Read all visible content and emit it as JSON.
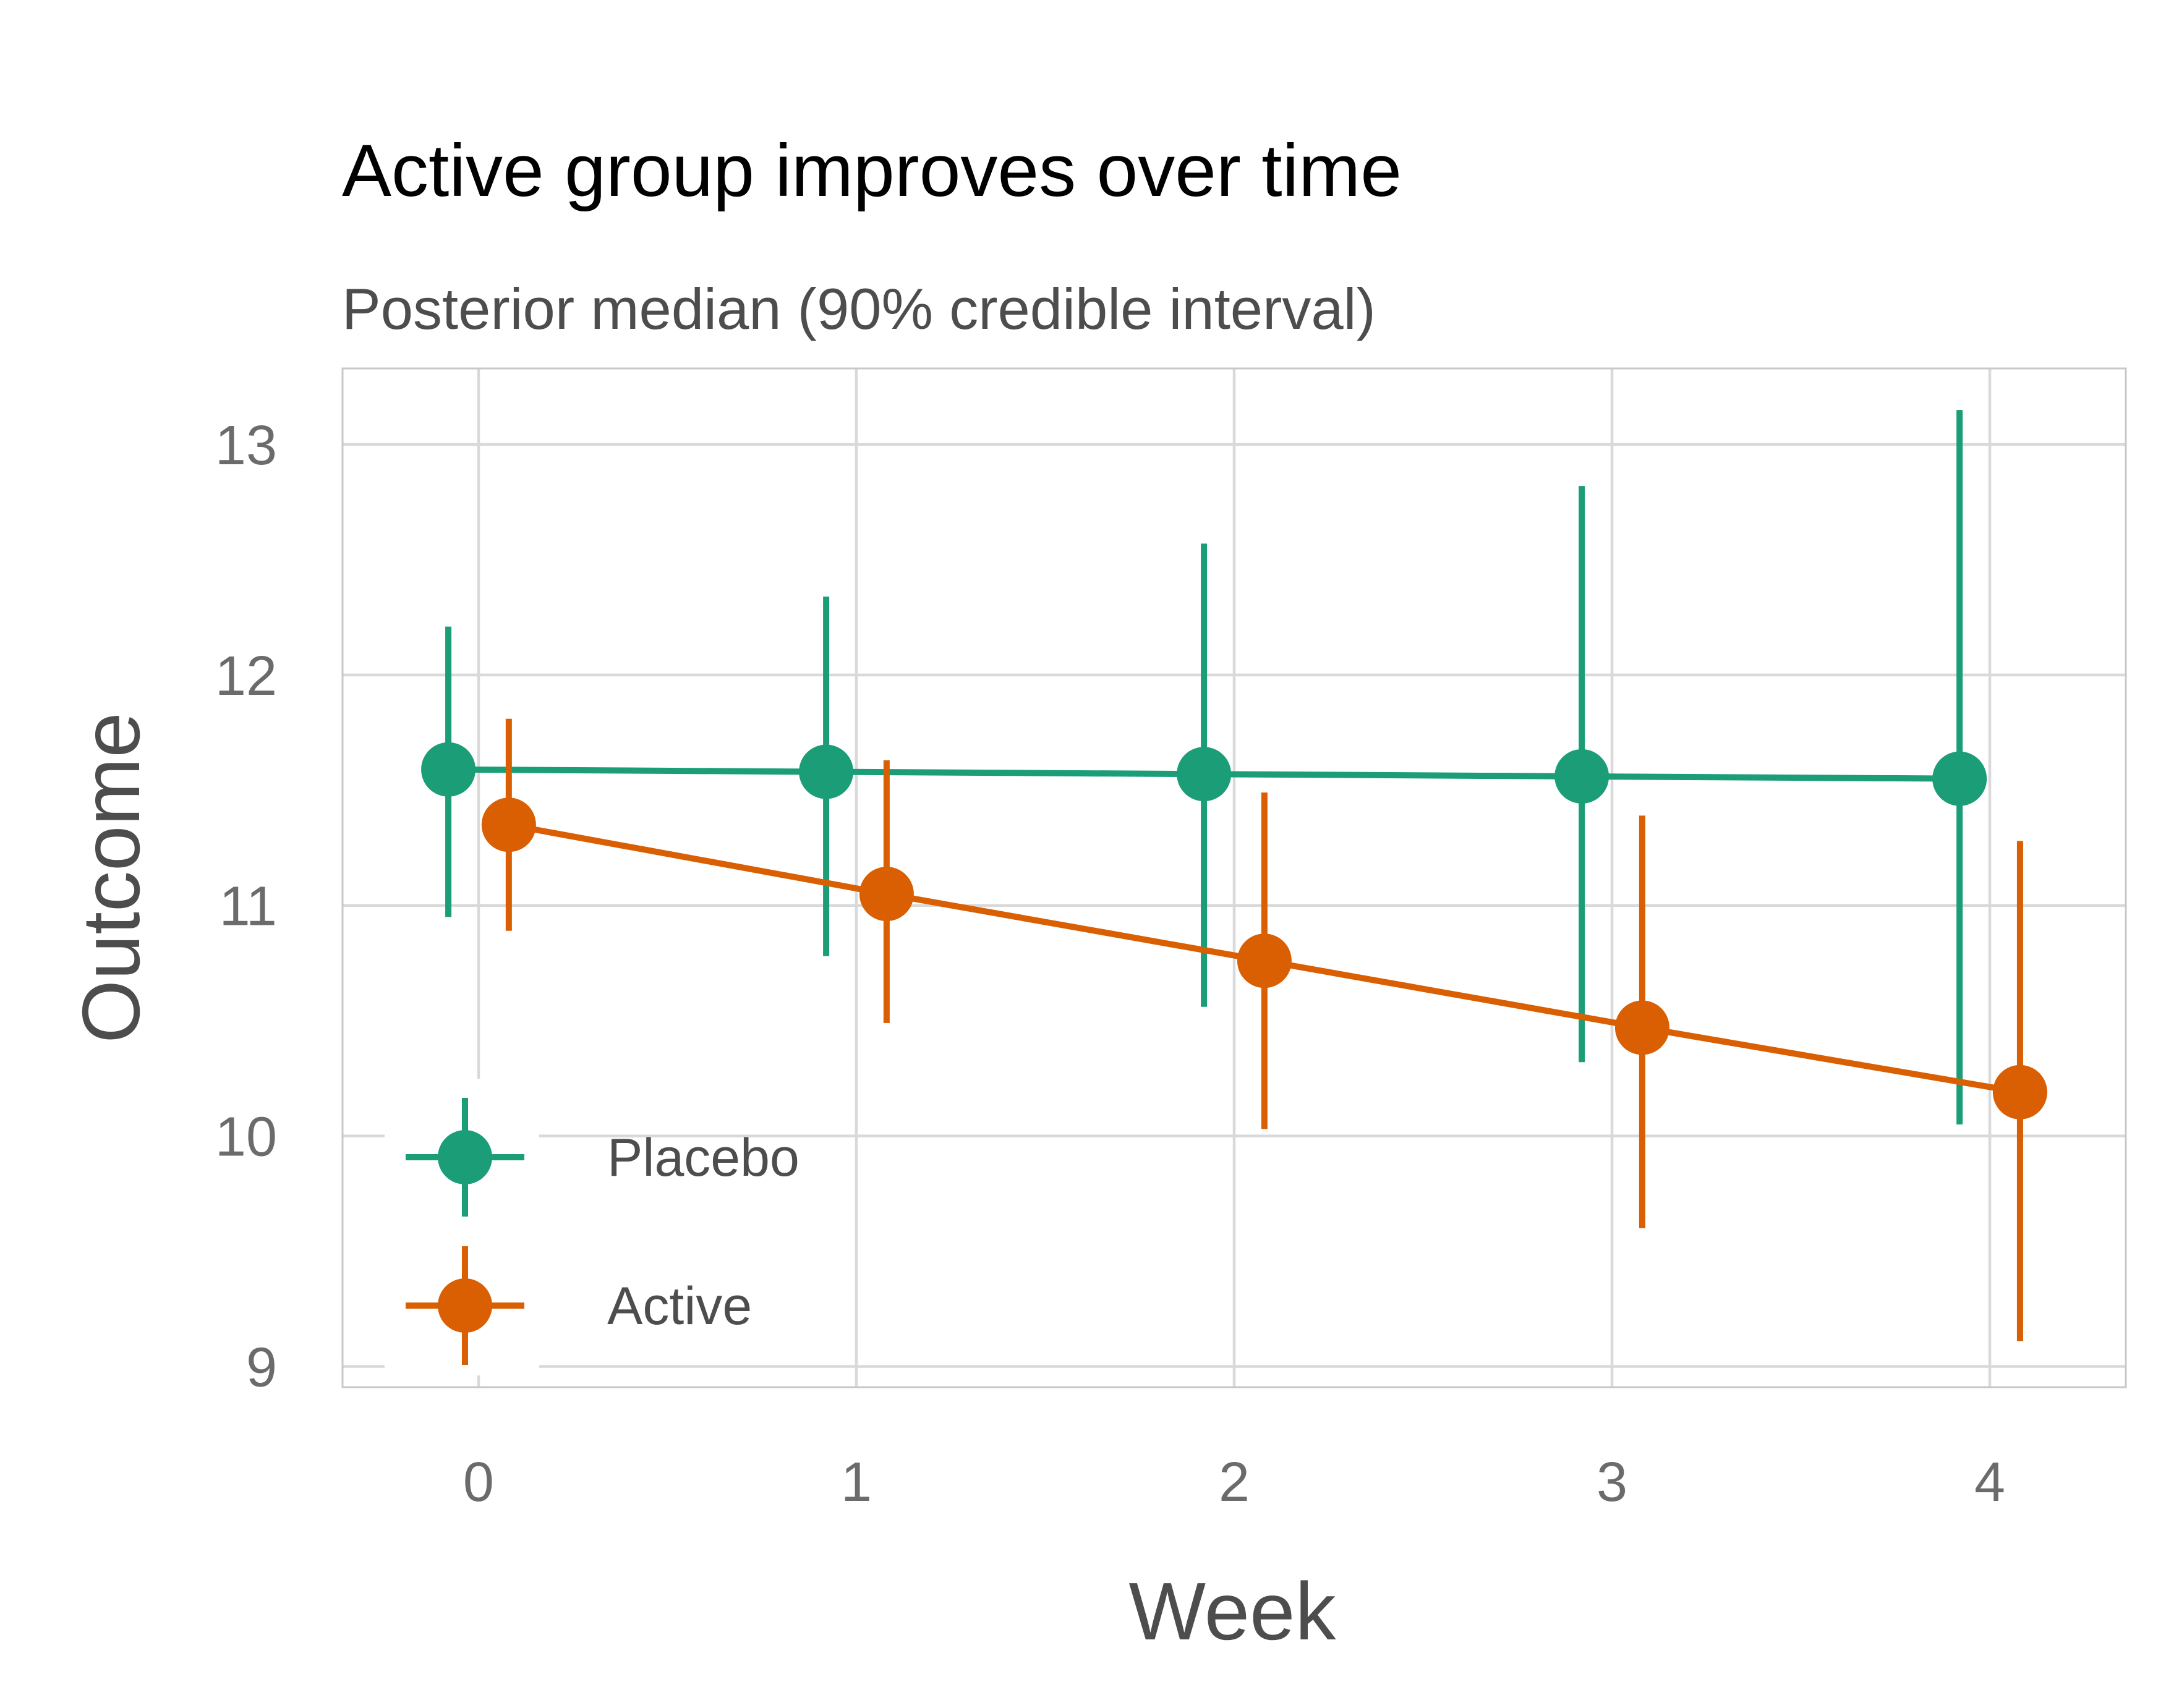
{
  "chart_data": {
    "type": "line",
    "title": "Active group improves over time",
    "subtitle": "Posterior median (90% credible interval)",
    "xlabel": "Week",
    "ylabel": "Outcome",
    "x": [
      0,
      1,
      2,
      3,
      4
    ],
    "x_ticks": [
      "0",
      "1",
      "2",
      "3",
      "4"
    ],
    "y_ticks": [
      "9",
      "10",
      "11",
      "12",
      "13"
    ],
    "xlim": [
      -0.36,
      4.36
    ],
    "ylim": [
      8.91,
      13.33
    ],
    "grid": true,
    "legend_position": "bottom-left",
    "series": [
      {
        "name": "Placebo",
        "color": "#1b9e77",
        "median": [
          11.59,
          11.58,
          11.57,
          11.56,
          11.55
        ],
        "lower": [
          10.95,
          10.78,
          10.56,
          10.32,
          10.05
        ],
        "upper": [
          12.21,
          12.34,
          12.57,
          12.82,
          13.15
        ]
      },
      {
        "name": "Active",
        "color": "#d95f02",
        "median": [
          11.35,
          11.05,
          10.76,
          10.47,
          10.19
        ],
        "lower": [
          10.89,
          10.49,
          10.03,
          9.6,
          9.11
        ],
        "upper": [
          11.81,
          11.63,
          11.49,
          11.39,
          11.28
        ]
      }
    ]
  }
}
